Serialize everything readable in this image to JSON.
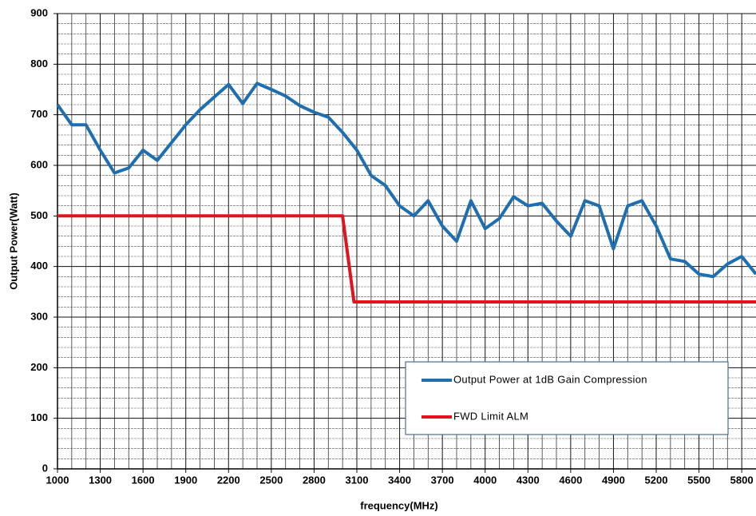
{
  "chart_data": {
    "type": "line",
    "x_label": "frequency(MHz)",
    "y_label": "Output Power(Watt)",
    "xlim": [
      1000,
      5900
    ],
    "ylim": [
      0,
      900
    ],
    "xticks": [
      1000,
      1300,
      1600,
      1900,
      2200,
      2500,
      2800,
      3100,
      3400,
      3700,
      4000,
      4300,
      4600,
      4900,
      5200,
      5500,
      5800
    ],
    "yticks": [
      0,
      100,
      200,
      300,
      400,
      500,
      600,
      700,
      800,
      900
    ],
    "grid": true,
    "legend": "lower right",
    "series": [
      {
        "name": "Output Power at 1dB Gain Compression",
        "color": "#1f6fb0",
        "x": [
          1000,
          1100,
          1200,
          1300,
          1400,
          1500,
          1600,
          1700,
          1800,
          1900,
          2000,
          2100,
          2200,
          2300,
          2400,
          2500,
          2600,
          2700,
          2800,
          2900,
          3000,
          3100,
          3200,
          3300,
          3400,
          3500,
          3600,
          3700,
          3800,
          3900,
          4000,
          4100,
          4200,
          4300,
          4400,
          4500,
          4600,
          4700,
          4800,
          4900,
          5000,
          5100,
          5200,
          5300,
          5400,
          5500,
          5600,
          5700,
          5800,
          5900
        ],
        "values": [
          720,
          680,
          680,
          630,
          585,
          595,
          630,
          610,
          645,
          680,
          710,
          735,
          760,
          722,
          762,
          750,
          737,
          718,
          705,
          695,
          665,
          630,
          580,
          560,
          520,
          500,
          530,
          480,
          450,
          530,
          475,
          495,
          538,
          520,
          525,
          490,
          460,
          530,
          520,
          435,
          520,
          530,
          480,
          415,
          410,
          385,
          380,
          405,
          420,
          385
        ]
      },
      {
        "name": "FWD Limit ALM",
        "color": "#e0141e",
        "x": [
          1000,
          3000,
          3080,
          5900
        ],
        "values": [
          500,
          500,
          330,
          330
        ]
      }
    ]
  }
}
